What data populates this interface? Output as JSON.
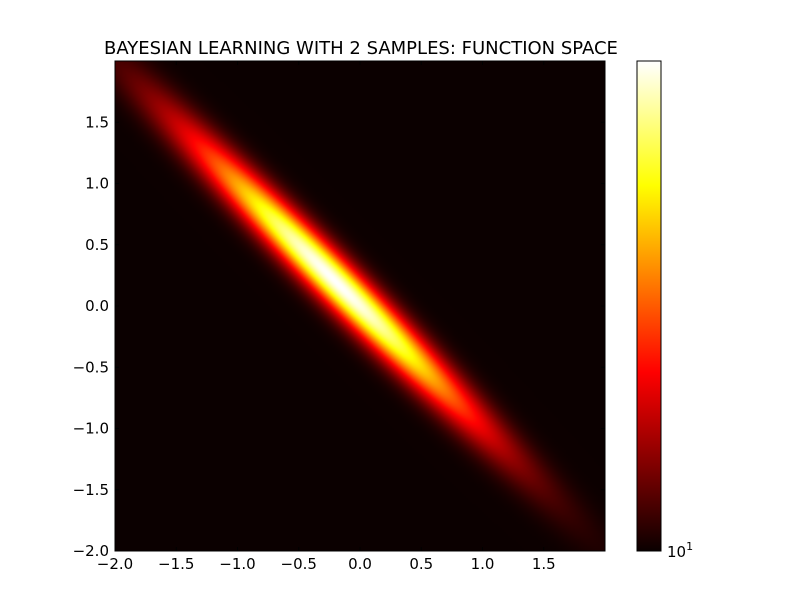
{
  "chart_data": {
    "type": "heatmap",
    "title": "BAYESIAN LEARNING WITH 2 SAMPLES: FUNCTION SPACE",
    "xlabel": "",
    "ylabel": "",
    "xlim": [
      -2.0,
      2.0
    ],
    "ylim": [
      -2.0,
      2.0
    ],
    "x_ticks": [
      -2.0,
      -1.5,
      -1.0,
      -0.5,
      0.0,
      0.5,
      1.0,
      1.5
    ],
    "x_tick_labels": [
      "−2.0",
      "−1.5",
      "−1.0",
      "−0.5",
      "0.0",
      "0.5",
      "1.0",
      "1.5"
    ],
    "y_ticks": [
      -2.0,
      -1.5,
      -1.0,
      -0.5,
      0.0,
      0.5,
      1.0,
      1.5
    ],
    "y_tick_labels": [
      "−2.0",
      "−1.5",
      "−1.0",
      "−0.5",
      "0.0",
      "0.5",
      "1.0",
      "1.5"
    ],
    "distribution": {
      "kind": "bivariate-normal",
      "mean": [
        -0.2,
        0.2
      ],
      "major_axis_direction": [
        1,
        -1
      ],
      "sigma_major": 1.15,
      "sigma_minor": 0.12
    },
    "colormap": "hot",
    "colorbar": {
      "scale": "log",
      "tick_labels": [
        {
          "base": "10",
          "exp": "1"
        }
      ]
    },
    "grid": false,
    "legend": "none"
  },
  "colors": {
    "hot_stops": [
      "#0b0000",
      "#ff0000",
      "#ffff00",
      "#ffffff"
    ]
  }
}
